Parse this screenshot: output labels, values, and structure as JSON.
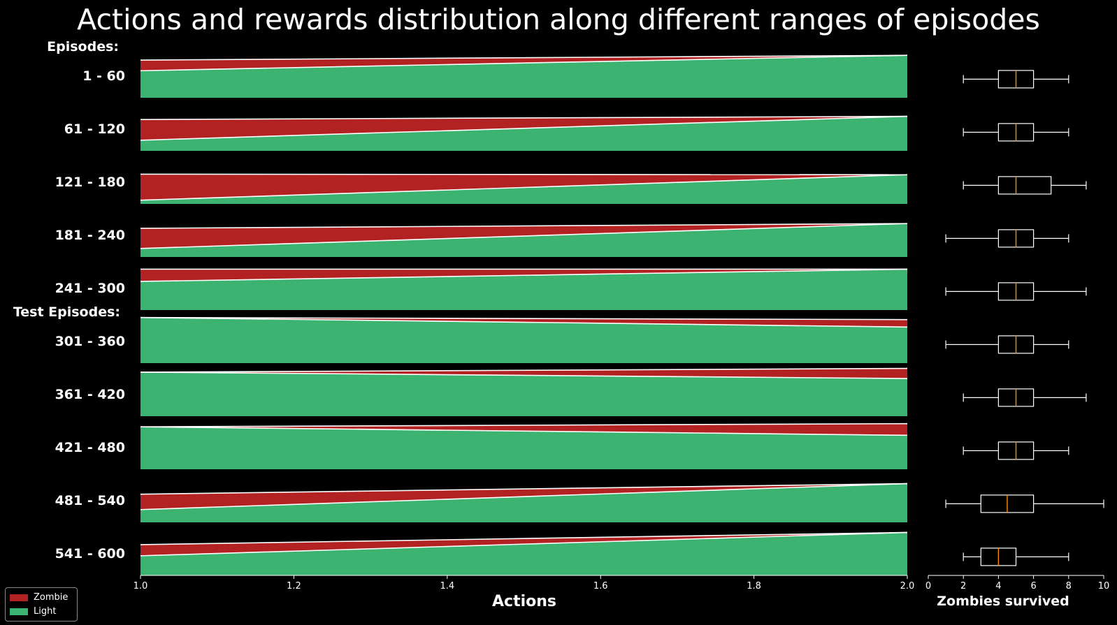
{
  "title": "Actions and rewards distribution along different ranges of episodes",
  "chart_data": [
    {
      "type": "area",
      "title": "",
      "xlabel": "Actions",
      "xlim": [
        1.0,
        2.0
      ],
      "x_ticks": [
        "1.0",
        "1.2",
        "1.4",
        "1.6",
        "1.8",
        "2.0"
      ],
      "group_labels": [
        "Episodes:",
        "Test Episodes:"
      ],
      "colors": {
        "zombie": "#b22222",
        "light": "#3cb371"
      },
      "rows": [
        {
          "label": "1 - 60",
          "zombie": [
            0.2,
            0.0
          ],
          "light": [
            0.51,
            0.8
          ]
        },
        {
          "label": "61 - 120",
          "zombie": [
            0.39,
            0.0
          ],
          "light": [
            0.2,
            0.65
          ]
        },
        {
          "label": "121 - 180",
          "zombie": [
            0.49,
            0.0
          ],
          "light": [
            0.07,
            0.55
          ]
        },
        {
          "label": "181 - 240",
          "zombie": [
            0.38,
            0.0
          ],
          "light": [
            0.16,
            0.63
          ]
        },
        {
          "label": "241 - 300",
          "zombie": [
            0.23,
            0.0
          ],
          "light": [
            0.54,
            0.77
          ]
        },
        {
          "label": "301 - 360",
          "zombie": [
            0.0,
            0.14
          ],
          "light": [
            0.86,
            0.68
          ]
        },
        {
          "label": "361 - 420",
          "zombie": [
            0.0,
            0.19
          ],
          "light": [
            0.83,
            0.71
          ]
        },
        {
          "label": "421 - 480",
          "zombie": [
            0.0,
            0.22
          ],
          "light": [
            0.8,
            0.64
          ]
        },
        {
          "label": "481 - 540",
          "zombie": [
            0.29,
            0.0
          ],
          "light": [
            0.24,
            0.73
          ]
        },
        {
          "label": "541 - 600",
          "zombie": [
            0.21,
            0.0
          ],
          "light": [
            0.37,
            0.81
          ]
        }
      ],
      "legend": [
        "Zombie",
        "Light"
      ],
      "legend_position": "bottom-left"
    },
    {
      "type": "boxplot",
      "xlabel": "Zombies survived",
      "xlim": [
        0,
        10
      ],
      "x_ticks": [
        "0",
        "2",
        "4",
        "6",
        "8",
        "10"
      ],
      "boxes": [
        {
          "min": 2,
          "q1": 4,
          "median": 5,
          "q3": 6,
          "max": 8
        },
        {
          "min": 2,
          "q1": 4,
          "median": 5,
          "q3": 6,
          "max": 8
        },
        {
          "min": 2,
          "q1": 4,
          "median": 5,
          "q3": 7,
          "max": 9
        },
        {
          "min": 1,
          "q1": 4,
          "median": 5,
          "q3": 6,
          "max": 8
        },
        {
          "min": 1,
          "q1": 4,
          "median": 5,
          "q3": 6,
          "max": 9
        },
        {
          "min": 1,
          "q1": 4,
          "median": 5,
          "q3": 6,
          "max": 8
        },
        {
          "min": 2,
          "q1": 4,
          "median": 5,
          "q3": 6,
          "max": 9
        },
        {
          "min": 2,
          "q1": 4,
          "median": 5,
          "q3": 6,
          "max": 8
        },
        {
          "min": 1,
          "q1": 3,
          "median": 4.5,
          "q3": 6,
          "max": 10
        },
        {
          "min": 2,
          "q1": 3,
          "median": 4,
          "q3": 5,
          "max": 8
        }
      ],
      "median_color": "#ff8c00"
    }
  ]
}
